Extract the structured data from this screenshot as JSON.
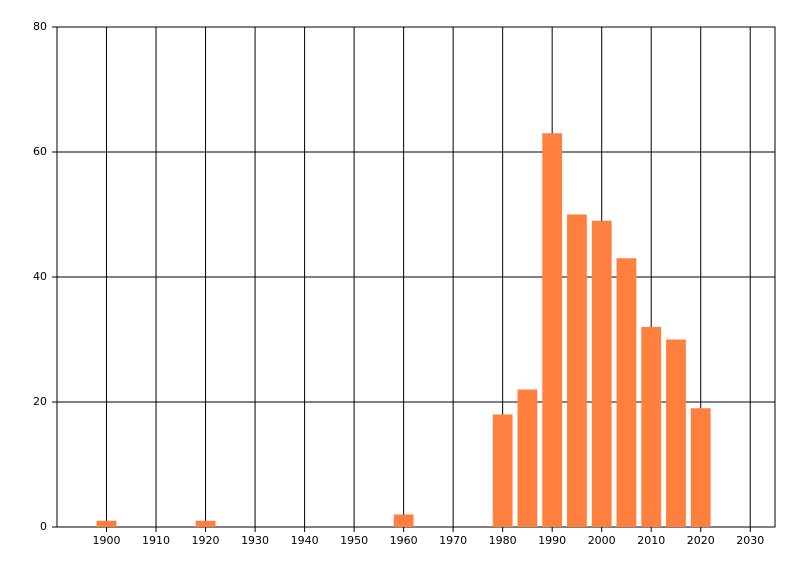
{
  "chart_data": {
    "type": "bar",
    "x": [
      1900,
      1920,
      1960,
      1980,
      1985,
      1990,
      1995,
      2000,
      2005,
      2010,
      2015,
      2020
    ],
    "values": [
      1,
      1,
      2,
      18,
      22,
      63,
      50,
      49,
      43,
      32,
      30,
      19
    ],
    "color": "#ff7f3f",
    "xlim": [
      1890,
      2035
    ],
    "xticks": [
      1900,
      1910,
      1920,
      1930,
      1940,
      1950,
      1960,
      1970,
      1980,
      1990,
      2000,
      2010,
      2020,
      2030
    ],
    "ylim": [
      0,
      80
    ],
    "yticks": [
      0,
      20,
      40,
      60,
      80
    ],
    "grid": true
  }
}
